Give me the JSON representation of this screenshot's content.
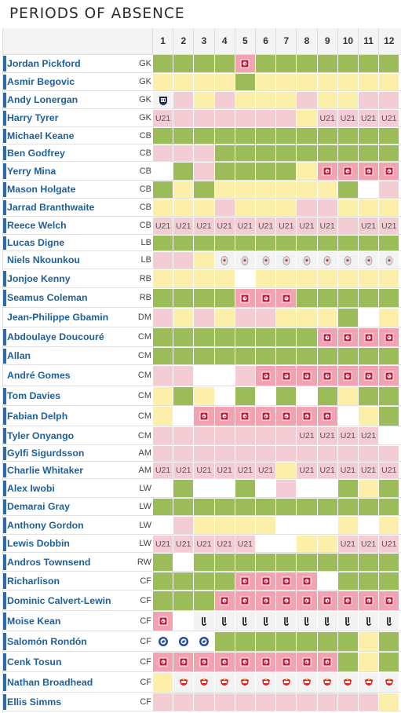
{
  "title": "PERIODS OF ABSENCE",
  "columns": [
    "1",
    "2",
    "3",
    "4",
    "5",
    "6",
    "7",
    "8",
    "9",
    "10",
    "11",
    "12"
  ],
  "legend": {
    "g": "played / available (dark green)",
    "l": "light green",
    "y": "yellow",
    "p": "pink",
    "r": "red (injured)",
    "w": "white"
  },
  "icons": {
    "inj": "injury-icon",
    "u21": "U21",
    "wba": "club-badge-icon",
    "mid": "club-badge-icon",
    "juv": "club-badge-icon",
    "shf": "club-badge-icon",
    "sun": "club-badge-icon"
  },
  "players": [
    {
      "name": "Jordan Pickford",
      "pos": "GK",
      "cells": [
        "g",
        "g",
        "g",
        "g",
        "r:inj",
        "g",
        "g",
        "g",
        "g",
        "g",
        "g",
        "g"
      ]
    },
    {
      "name": "Asmir Begovic",
      "pos": "GK",
      "cells": [
        "y",
        "y",
        "y",
        "y",
        "g",
        "y",
        "y",
        "y",
        "y",
        "y",
        "y",
        "y"
      ]
    },
    {
      "name": "Andy Lonergan",
      "pos": "GK",
      "cells": [
        "w:wba",
        "p",
        "y",
        "p",
        "y",
        "y",
        "y",
        "p",
        "y",
        "y",
        "p",
        "p"
      ]
    },
    {
      "name": "Harry Tyrer",
      "pos": "GK",
      "cells": [
        "p:u21",
        "p",
        "p",
        "p",
        "p",
        "p",
        "p",
        "y",
        "p:u21",
        "p:u21",
        "p:u21",
        "p:u21"
      ]
    },
    {
      "name": "Michael Keane",
      "pos": "CB",
      "cells": [
        "g",
        "g",
        "g",
        "g",
        "g",
        "g",
        "g",
        "g",
        "g",
        "g",
        "g",
        "g"
      ]
    },
    {
      "name": "Ben Godfrey",
      "pos": "CB",
      "cells": [
        "p",
        "p",
        "p",
        "g",
        "g",
        "g",
        "g",
        "g",
        "g",
        "g",
        "g",
        "g"
      ]
    },
    {
      "name": "Yerry Mina",
      "pos": "CB",
      "cells": [
        "l",
        "g",
        "p",
        "g",
        "g",
        "g",
        "g",
        "y",
        "r:inj",
        "r:inj",
        "r:inj",
        "r:inj"
      ]
    },
    {
      "name": "Mason Holgate",
      "pos": "CB",
      "cells": [
        "g",
        "y",
        "g",
        "y",
        "y",
        "y",
        "y",
        "y",
        "y",
        "g",
        "l",
        "p"
      ]
    },
    {
      "name": "Jarrad Branthwaite",
      "pos": "CB",
      "cells": [
        "y",
        "y",
        "y",
        "p",
        "y",
        "y",
        "y",
        "p",
        "p",
        "y",
        "y",
        "y"
      ]
    },
    {
      "name": "Reece Welch",
      "pos": "CB",
      "cells": [
        "p:u21",
        "p:u21",
        "p:u21",
        "p:u21",
        "p:u21",
        "p:u21",
        "p:u21",
        "p:u21",
        "p:u21",
        "p",
        "p:u21",
        "p:u21"
      ]
    },
    {
      "name": "Lucas Digne",
      "pos": "LB",
      "cells": [
        "g",
        "g",
        "g",
        "g",
        "g",
        "g",
        "g",
        "g",
        "g",
        "g",
        "g",
        "g"
      ]
    },
    {
      "name": "Niels Nkounkou",
      "pos": "LB",
      "cells": [
        "p",
        "p",
        "y",
        "w:mid",
        "w:mid",
        "w:mid",
        "w:mid",
        "w:mid",
        "w:mid",
        "w:mid",
        "w:mid",
        "w:mid"
      ]
    },
    {
      "name": "Jonjoe Kenny",
      "pos": "RB",
      "cells": [
        "y",
        "y",
        "y",
        "y",
        "l",
        "y",
        "y",
        "y",
        "y",
        "y",
        "y",
        "y"
      ]
    },
    {
      "name": "Seamus Coleman",
      "pos": "RB",
      "cells": [
        "g",
        "g",
        "g",
        "g",
        "r:inj",
        "r:inj",
        "r:inj",
        "g",
        "g",
        "g",
        "g",
        "g"
      ]
    },
    {
      "name": "Jean-Philippe Gbamin",
      "pos": "DM",
      "cells": [
        "p",
        "y",
        "p",
        "y",
        "p",
        "p",
        "y",
        "y",
        "y",
        "g",
        "l",
        "y"
      ]
    },
    {
      "name": "Abdoulaye Doucouré",
      "pos": "CM",
      "cells": [
        "g",
        "g",
        "g",
        "g",
        "g",
        "g",
        "g",
        "g",
        "r:inj",
        "r:inj",
        "r:inj",
        "r:inj"
      ]
    },
    {
      "name": "Allan",
      "pos": "CM",
      "cells": [
        "g",
        "g",
        "g",
        "g",
        "g",
        "g",
        "g",
        "g",
        "g",
        "g",
        "g",
        "g"
      ]
    },
    {
      "name": "André Gomes",
      "pos": "CM",
      "cells": [
        "p",
        "p",
        "l",
        "l",
        "p",
        "r:inj",
        "r:inj",
        "r:inj",
        "r:inj",
        "r:inj",
        "r:inj",
        "r:inj"
      ]
    },
    {
      "name": "Tom Davies",
      "pos": "CM",
      "cells": [
        "y",
        "g",
        "y",
        "l",
        "g",
        "l",
        "g",
        "l",
        "g",
        "y",
        "g",
        "g"
      ]
    },
    {
      "name": "Fabian Delph",
      "pos": "CM",
      "cells": [
        "y",
        "l",
        "r:inj",
        "r:inj",
        "r:inj",
        "r:inj",
        "r:inj",
        "r:inj",
        "r:inj",
        "l",
        "y",
        "g"
      ]
    },
    {
      "name": "Tyler Onyango",
      "pos": "CM",
      "cells": [
        "p",
        "p",
        "p",
        "p",
        "p",
        "p",
        "p",
        "p:u21",
        "p:u21",
        "p:u21",
        "p:u21",
        "l"
      ]
    },
    {
      "name": "Gylfi Sigurdsson",
      "pos": "AM",
      "cells": [
        "p",
        "p",
        "p",
        "p",
        "p",
        "p",
        "p",
        "p",
        "p",
        "p",
        "p",
        "p"
      ]
    },
    {
      "name": "Charlie Whitaker",
      "pos": "AM",
      "cells": [
        "p:u21",
        "p:u21",
        "p:u21",
        "p:u21",
        "p:u21",
        "p:u21",
        "y",
        "p:u21",
        "p:u21",
        "p:u21",
        "p:u21",
        "p:u21"
      ]
    },
    {
      "name": "Alex Iwobi",
      "pos": "LW",
      "cells": [
        "l",
        "g",
        "l",
        "l",
        "g",
        "l",
        "p",
        "l",
        "l",
        "g",
        "y",
        "g"
      ]
    },
    {
      "name": "Demarai Gray",
      "pos": "LW",
      "cells": [
        "g",
        "g",
        "g",
        "g",
        "g",
        "g",
        "g",
        "g",
        "g",
        "g",
        "g",
        "g"
      ]
    },
    {
      "name": "Anthony Gordon",
      "pos": "LW",
      "cells": [
        "l",
        "p",
        "y",
        "y",
        "y",
        "y",
        "l",
        "l",
        "l",
        "y",
        "l",
        "y"
      ]
    },
    {
      "name": "Lewis Dobbin",
      "pos": "LW",
      "cells": [
        "p:u21",
        "p:u21",
        "p:u21",
        "p:u21",
        "p:u21",
        "l",
        "l",
        "y",
        "y",
        "p:u21",
        "p:u21",
        "p:u21"
      ]
    },
    {
      "name": "Andros Townsend",
      "pos": "RW",
      "cells": [
        "g",
        "l",
        "g",
        "g",
        "g",
        "g",
        "g",
        "g",
        "g",
        "g",
        "g",
        "g"
      ]
    },
    {
      "name": "Richarlison",
      "pos": "CF",
      "cells": [
        "g",
        "g",
        "g",
        "g",
        "r:inj",
        "r:inj",
        "r:inj",
        "r:inj",
        "l",
        "g",
        "g",
        "g"
      ]
    },
    {
      "name": "Dominic Calvert-Lewin",
      "pos": "CF",
      "cells": [
        "g",
        "g",
        "g",
        "r:inj",
        "r:inj",
        "r:inj",
        "r:inj",
        "r:inj",
        "r:inj",
        "r:inj",
        "r:inj",
        "r:inj"
      ]
    },
    {
      "name": "Moise Kean",
      "pos": "CF",
      "cells": [
        "r:inj",
        "l",
        "w:juv",
        "w:juv",
        "w:juv",
        "w:juv",
        "w:juv",
        "w:juv",
        "w:juv",
        "w:juv",
        "w:juv",
        "w:juv"
      ]
    },
    {
      "name": "Salomón Rondón",
      "pos": "CF",
      "cells": [
        "l:shf",
        "l:shf",
        "l:shf",
        "g",
        "g",
        "g",
        "g",
        "g",
        "g",
        "g",
        "y",
        "g"
      ]
    },
    {
      "name": "Cenk Tosun",
      "pos": "CF",
      "cells": [
        "r:inj",
        "r:inj",
        "r:inj",
        "r:inj",
        "r:inj",
        "r:inj",
        "r:inj",
        "r:inj",
        "r:inj",
        "g",
        "y",
        "g"
      ]
    },
    {
      "name": "Nathan Broadhead",
      "pos": "CF",
      "cells": [
        "y",
        "w:sun",
        "w:sun",
        "w:sun",
        "w:sun",
        "w:sun",
        "w:sun",
        "w:sun",
        "w:sun",
        "w:sun",
        "w:sun",
        "w:sun"
      ]
    },
    {
      "name": "Ellis Simms",
      "pos": "CF",
      "cells": [
        "p",
        "p",
        "p",
        "p",
        "p",
        "p",
        "p",
        "p",
        "p",
        "p",
        "p",
        "y"
      ]
    }
  ]
}
